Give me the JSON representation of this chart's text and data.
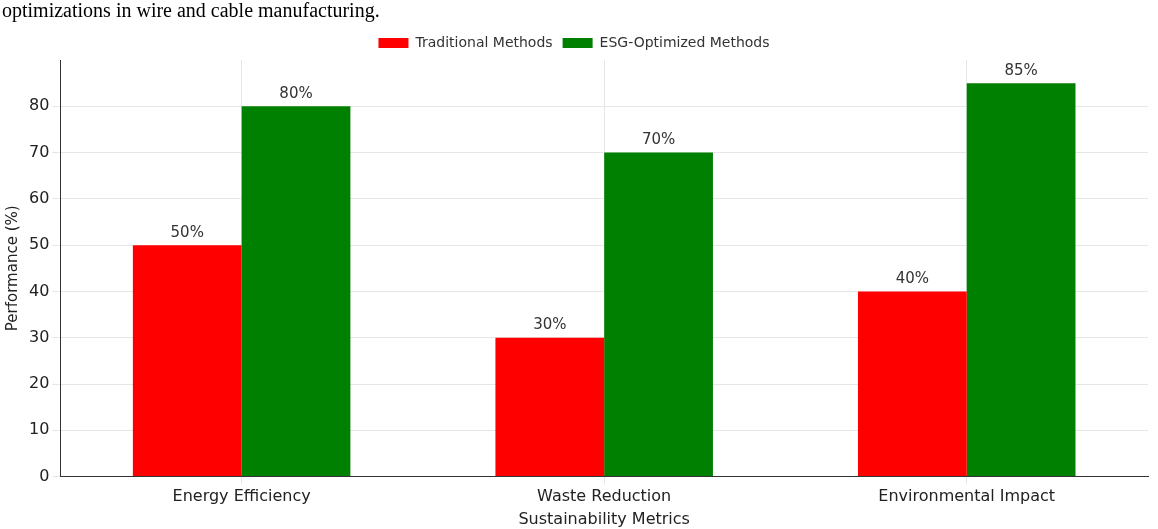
{
  "chart_data": {
    "type": "bar",
    "xlabel": "Sustainability Metrics",
    "ylabel": "Performance (%)",
    "annotations": [
      "optimizations in wire and cable manufacturing."
    ],
    "categories": [
      "Energy Efficiency",
      "Waste Reduction",
      "Environmental Impact"
    ],
    "series": [
      {
        "name": "Traditional Methods",
        "color": "#ff0000",
        "values": [
          50,
          30,
          40
        ],
        "value_labels": [
          "50%",
          "30%",
          "40%"
        ]
      },
      {
        "name": "ESG-Optimized Methods",
        "color": "#008000",
        "values": [
          80,
          70,
          85
        ],
        "value_labels": [
          "80%",
          "70%",
          "85%"
        ]
      }
    ],
    "ylim": [
      0,
      90
    ],
    "yticks": [
      0,
      10,
      20,
      30,
      40,
      50,
      60,
      70,
      80
    ],
    "grid": true,
    "legend": "top"
  }
}
